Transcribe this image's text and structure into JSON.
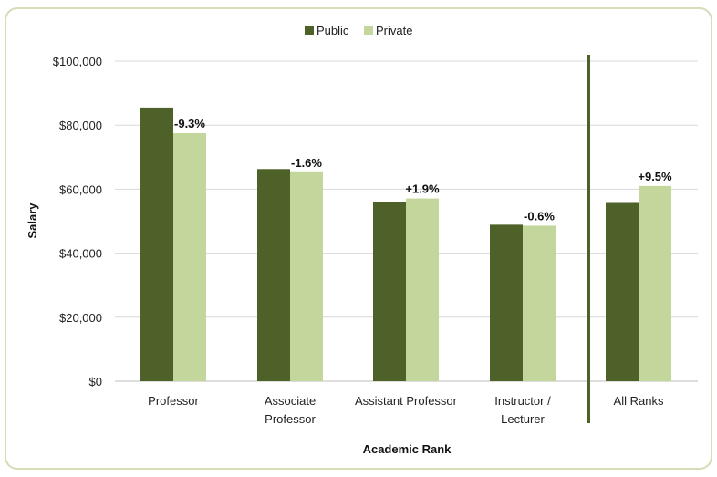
{
  "chart_data": {
    "type": "bar",
    "title": "",
    "xlabel": "Academic Rank",
    "ylabel": "Salary",
    "ylim": [
      0,
      100000
    ],
    "yticks": [
      0,
      20000,
      40000,
      60000,
      80000,
      100000
    ],
    "ytick_labels": [
      "$0",
      "$20,000",
      "$40,000",
      "$60,000",
      "$80,000",
      "$100,000"
    ],
    "grid": true,
    "legend_position": "top-center",
    "categories": [
      [
        "Professor"
      ],
      [
        "Associate",
        "Professor"
      ],
      [
        "Assistant Professor"
      ],
      [
        "Instructor /",
        "Lecturer"
      ],
      [
        "All Ranks"
      ]
    ],
    "series": [
      {
        "name": "Public",
        "color": "#4e6128",
        "values": [
          85500,
          66300,
          56000,
          48900,
          55700
        ]
      },
      {
        "name": "Private",
        "color": "#c3d69b",
        "values": [
          77500,
          65300,
          57100,
          48600,
          61000
        ]
      }
    ],
    "annotations": [
      "-9.3%",
      "-1.6%",
      "+1.9%",
      "-0.6%",
      "+9.5%"
    ],
    "separator_after_category": 3
  }
}
